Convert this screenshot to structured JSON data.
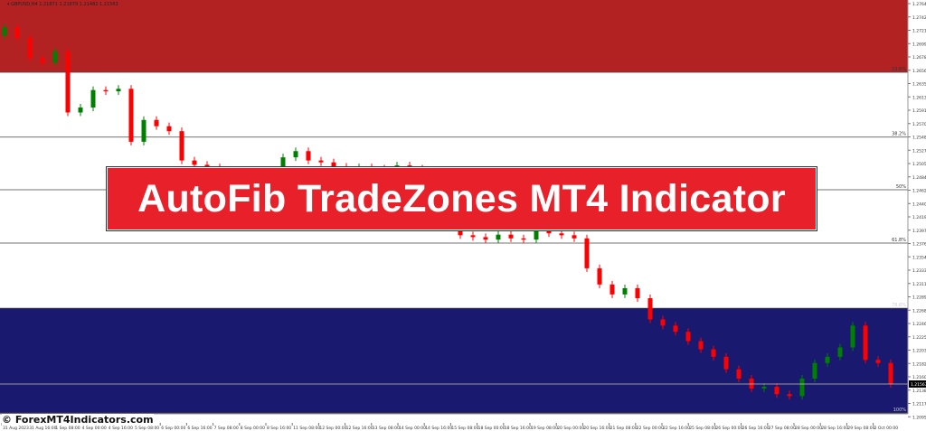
{
  "header": {
    "symbol_info": "▾ GBPUSD,H4  1.21871 1.21879 1.21482 1.21563"
  },
  "banner": {
    "title": "AutoFib TradeZones MT4 Indicator"
  },
  "watermark": {
    "copyright": "© ForexMT4Indicators.com"
  },
  "colors": {
    "upper_zone": "#b22222",
    "lower_zone": "#191970",
    "bull": "#008000",
    "bear": "#ff0000",
    "banner": "#e8202a"
  },
  "chart_data": {
    "type": "candlestick",
    "price_axis_labels": [
      "1.27645",
      "1.27425",
      "1.27210",
      "1.26995",
      "1.26780",
      "1.26565",
      "1.26350",
      "1.26135",
      "1.25915",
      "1.25700",
      "1.25485",
      "1.25270",
      "1.25055",
      "1.24840",
      "1.24625",
      "1.24405",
      "1.24190",
      "1.23975",
      "1.23760",
      "1.23545",
      "1.23330",
      "1.23115",
      "1.22895",
      "1.22680",
      "1.22465",
      "1.22250",
      "1.22035",
      "1.21820",
      "1.21600",
      "1.21385",
      "1.21170",
      "1.20955"
    ],
    "time_axis_labels": [
      "31 Aug 2023",
      "31 Aug 16:00",
      "1 Sep 08:00",
      "4 Sep 00:00",
      "4 Sep 16:00",
      "5 Sep 08:00",
      "6 Sep 00:00",
      "6 Sep 16:00",
      "7 Sep 08:00",
      "8 Sep 00:00",
      "8 Sep 16:00",
      "11 Sep 08:00",
      "12 Sep 00:00",
      "12 Sep 16:00",
      "13 Sep 08:00",
      "14 Sep 00:00",
      "14 Sep 16:00",
      "15 Sep 08:00",
      "18 Sep 00:00",
      "18 Sep 16:00",
      "19 Sep 08:00",
      "20 Sep 00:00",
      "20 Sep 16:00",
      "21 Sep 08:00",
      "22 Sep 00:00",
      "22 Sep 16:00",
      "25 Sep 08:00",
      "26 Sep 00:00",
      "26 Sep 16:00",
      "27 Sep 08:00",
      "28 Sep 00:00",
      "28 Sep 16:00",
      "29 Sep 08:00",
      "2 Oct 00:00"
    ],
    "fib_levels": [
      {
        "label": "23.6%",
        "price": 1.26565
      },
      {
        "label": "38.2%",
        "price": 1.25525
      },
      {
        "label": "50%",
        "price": 1.2468
      },
      {
        "label": "61.8%",
        "price": 1.23825
      },
      {
        "label": "78.6%",
        "price": 1.2278
      },
      {
        "label": "100%",
        "price": 1.211
      }
    ],
    "current_price": "1.21563",
    "first_open": 1.2715,
    "closes": [
      1.2729,
      1.2712,
      1.2679,
      1.2672,
      1.269,
      1.2592,
      1.26,
      1.2628,
      1.2626,
      1.263,
      1.2545,
      1.258,
      1.257,
      1.2562,
      1.2515,
      1.2508,
      1.2504,
      1.25,
      1.249,
      1.2495,
      1.2488,
      1.25,
      1.252,
      1.253,
      1.2515,
      1.2512,
      1.2505,
      1.25,
      1.2504,
      1.2502,
      1.25,
      1.2507,
      1.2502,
      1.243,
      1.242,
      1.241,
      1.2395,
      1.2392,
      1.2388,
      1.2396,
      1.239,
      1.2388,
      1.2412,
      1.2398,
      1.2395,
      1.239,
      1.2342,
      1.2316,
      1.23,
      1.231,
      1.2294,
      1.226,
      1.225,
      1.224,
      1.2225,
      1.2212,
      1.22,
      1.218,
      1.2165,
      1.2149,
      1.2152,
      1.214,
      1.2137,
      1.2165,
      1.219,
      1.22,
      1.2215,
      1.225,
      1.2195,
      1.219,
      1.21563
    ]
  }
}
